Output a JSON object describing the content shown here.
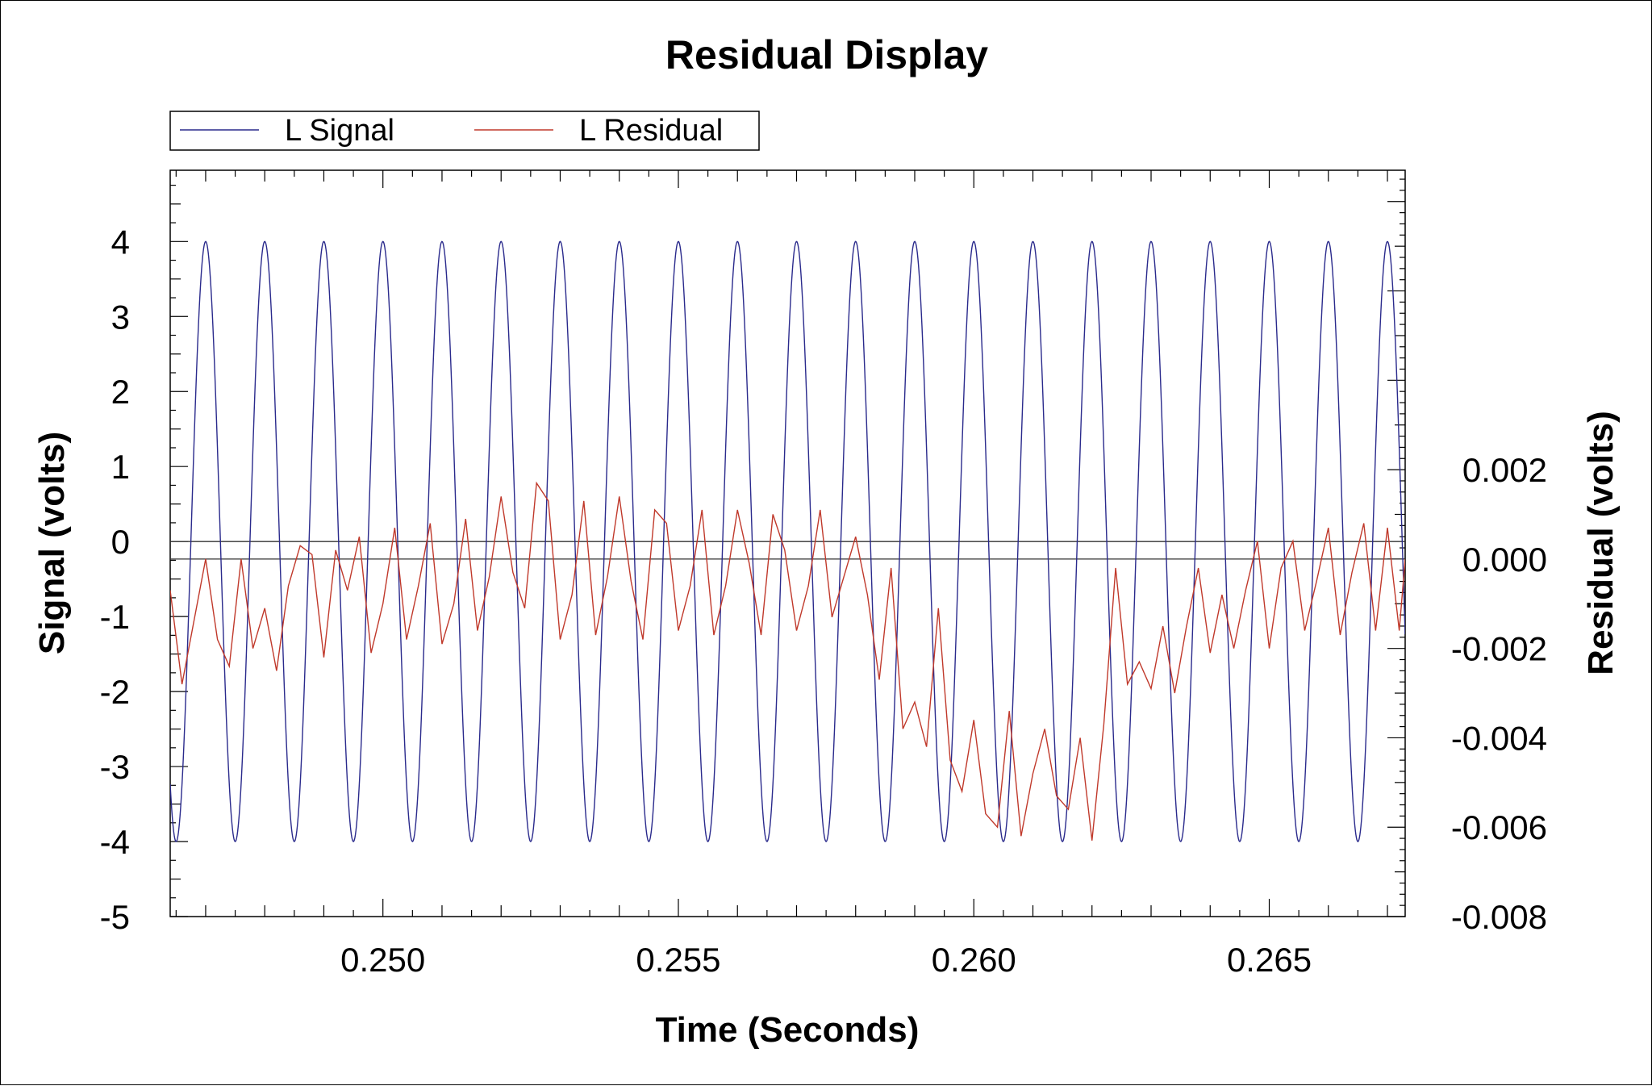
{
  "chart_data": {
    "type": "line",
    "title": "Residual Display",
    "xlabel": "Time (Seconds)",
    "ylabel": "Signal (volts)",
    "y2label": "Residual (volts)",
    "xlim": [
      0.2464,
      0.2673
    ],
    "ylim": [
      -5,
      4.95
    ],
    "y2lim": [
      -0.008,
      0.0087
    ],
    "xticks": [
      0.25,
      0.255,
      0.26,
      0.265
    ],
    "xtick_labels": [
      "0.250",
      "0.255",
      "0.260",
      "0.265"
    ],
    "yticks": [
      -5,
      -4,
      -3,
      -2,
      -1,
      0,
      1,
      2,
      3,
      4
    ],
    "ytick_labels": [
      "-5",
      "-4",
      "-3",
      "-2",
      "-1",
      "0",
      "1",
      "2",
      "3",
      "4"
    ],
    "y2ticks": [
      -0.008,
      -0.006,
      -0.004,
      -0.002,
      0.0,
      0.002
    ],
    "y2tick_labels": [
      "-0.008",
      "-0.006",
      "-0.004",
      "-0.002",
      "0.000",
      "0.002"
    ],
    "reference_lines": [
      {
        "axis": "y",
        "value": 0
      },
      {
        "axis": "y2",
        "value": 0.0
      }
    ],
    "legend": {
      "placement": "top-left-outside"
    },
    "series": [
      {
        "name": "L Signal",
        "color": "#2a2a8c",
        "axis": "y",
        "kind": "sine",
        "amplitude": 4.0,
        "frequency_hz": 1000,
        "phase_reference_peak_x": 0.247
      },
      {
        "name": "L Residual",
        "color": "#c0392b",
        "axis": "y2",
        "points": [
          [
            0.2464,
            -0.0007
          ],
          [
            0.2466,
            -0.0028
          ],
          [
            0.2468,
            -0.0014
          ],
          [
            0.247,
            0.0
          ],
          [
            0.2472,
            -0.0018
          ],
          [
            0.2474,
            -0.0024
          ],
          [
            0.2476,
            0.0
          ],
          [
            0.2478,
            -0.002
          ],
          [
            0.248,
            -0.0011
          ],
          [
            0.2482,
            -0.0025
          ],
          [
            0.2484,
            -0.0006
          ],
          [
            0.2486,
            0.0003
          ],
          [
            0.2488,
            0.0001
          ],
          [
            0.249,
            -0.0022
          ],
          [
            0.2492,
            0.0002
          ],
          [
            0.2494,
            -0.0007
          ],
          [
            0.2496,
            0.0005
          ],
          [
            0.2498,
            -0.0021
          ],
          [
            0.25,
            -0.001
          ],
          [
            0.2502,
            0.0007
          ],
          [
            0.2504,
            -0.0018
          ],
          [
            0.2506,
            -0.0006
          ],
          [
            0.2508,
            0.0008
          ],
          [
            0.251,
            -0.0019
          ],
          [
            0.2512,
            -0.001
          ],
          [
            0.2514,
            0.0009
          ],
          [
            0.2516,
            -0.0016
          ],
          [
            0.2518,
            -0.0004
          ],
          [
            0.252,
            0.0014
          ],
          [
            0.2522,
            -0.0003
          ],
          [
            0.2524,
            -0.0011
          ],
          [
            0.2526,
            0.0017
          ],
          [
            0.2528,
            0.0013
          ],
          [
            0.253,
            -0.0018
          ],
          [
            0.2532,
            -0.0008
          ],
          [
            0.2534,
            0.0013
          ],
          [
            0.2536,
            -0.0017
          ],
          [
            0.2538,
            -0.0004
          ],
          [
            0.254,
            0.0014
          ],
          [
            0.2542,
            -0.0005
          ],
          [
            0.2544,
            -0.0018
          ],
          [
            0.2546,
            0.0011
          ],
          [
            0.2548,
            0.0008
          ],
          [
            0.255,
            -0.0016
          ],
          [
            0.2552,
            -0.0006
          ],
          [
            0.2554,
            0.0011
          ],
          [
            0.2556,
            -0.0017
          ],
          [
            0.2558,
            -0.0006
          ],
          [
            0.256,
            0.0011
          ],
          [
            0.2562,
            -0.0001
          ],
          [
            0.2564,
            -0.0017
          ],
          [
            0.2566,
            0.001
          ],
          [
            0.2568,
            0.0002
          ],
          [
            0.257,
            -0.0016
          ],
          [
            0.2572,
            -0.0006
          ],
          [
            0.2574,
            0.0011
          ],
          [
            0.2576,
            -0.0013
          ],
          [
            0.2578,
            -0.0004
          ],
          [
            0.258,
            0.0005
          ],
          [
            0.2582,
            -0.0008
          ],
          [
            0.2584,
            -0.0027
          ],
          [
            0.2586,
            -0.0002
          ],
          [
            0.2588,
            -0.0038
          ],
          [
            0.259,
            -0.0032
          ],
          [
            0.2592,
            -0.0042
          ],
          [
            0.2594,
            -0.0011
          ],
          [
            0.2596,
            -0.0045
          ],
          [
            0.2598,
            -0.0052
          ],
          [
            0.26,
            -0.0036
          ],
          [
            0.2602,
            -0.0057
          ],
          [
            0.2604,
            -0.006
          ],
          [
            0.2606,
            -0.0034
          ],
          [
            0.2608,
            -0.0062
          ],
          [
            0.261,
            -0.0048
          ],
          [
            0.2612,
            -0.0038
          ],
          [
            0.2614,
            -0.0053
          ],
          [
            0.2616,
            -0.0056
          ],
          [
            0.2618,
            -0.004
          ],
          [
            0.262,
            -0.0063
          ],
          [
            0.2622,
            -0.0037
          ],
          [
            0.2624,
            -0.0002
          ],
          [
            0.2626,
            -0.0028
          ],
          [
            0.2628,
            -0.0023
          ],
          [
            0.263,
            -0.0029
          ],
          [
            0.2632,
            -0.0015
          ],
          [
            0.2634,
            -0.003
          ],
          [
            0.2636,
            -0.0015
          ],
          [
            0.2638,
            -0.0002
          ],
          [
            0.264,
            -0.0021
          ],
          [
            0.2642,
            -0.0008
          ],
          [
            0.2644,
            -0.002
          ],
          [
            0.2646,
            -0.0007
          ],
          [
            0.2648,
            0.0004
          ],
          [
            0.265,
            -0.002
          ],
          [
            0.2652,
            -0.0002
          ],
          [
            0.2654,
            0.0004
          ],
          [
            0.2656,
            -0.0016
          ],
          [
            0.2658,
            -0.0005
          ],
          [
            0.266,
            0.0007
          ],
          [
            0.2662,
            -0.0017
          ],
          [
            0.2664,
            -0.0003
          ],
          [
            0.2666,
            0.0008
          ],
          [
            0.2668,
            -0.0016
          ],
          [
            0.267,
            0.0007
          ],
          [
            0.2672,
            -0.0016
          ],
          [
            0.2673,
            0.0
          ]
        ]
      }
    ]
  }
}
